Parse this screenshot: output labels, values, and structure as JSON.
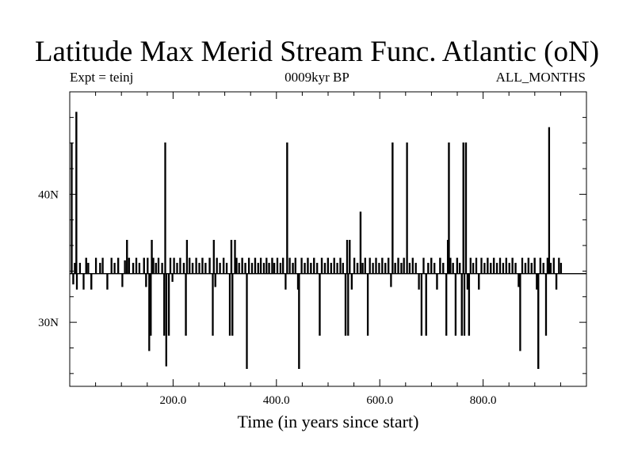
{
  "chart_data": {
    "type": "line",
    "title": "Latitude Max Merid Stream Func. Atlantic (oN)",
    "subtitle_left": "Expt = teinj",
    "subtitle_center": "0009kyr BP",
    "subtitle_right": "ALL_MONTHS",
    "xlabel": "Time (in years since start)",
    "ylabel": "",
    "xlim": [
      0,
      1000
    ],
    "ylim": [
      25.0,
      48.0
    ],
    "x_ticks": [
      200,
      400,
      600,
      800
    ],
    "x_tick_labels": [
      "200.0",
      "400.0",
      "600.0",
      "800.0"
    ],
    "y_ticks": [
      30,
      40
    ],
    "y_tick_labels": [
      "30N",
      "40N"
    ],
    "baseline": 33.8,
    "series": [
      {
        "events": [
          [
            3,
            44.0
          ],
          [
            6,
            33.0
          ],
          [
            9,
            34.6
          ],
          [
            12,
            46.4
          ],
          [
            13,
            32.6
          ],
          [
            19,
            34.6
          ],
          [
            26,
            32.6
          ],
          [
            31,
            35.0
          ],
          [
            35,
            34.6
          ],
          [
            41,
            32.6
          ],
          [
            50,
            35.0
          ],
          [
            58,
            34.6
          ],
          [
            63,
            35.0
          ],
          [
            72,
            32.6
          ],
          [
            80,
            35.0
          ],
          [
            86,
            34.6
          ],
          [
            93,
            35.0
          ],
          [
            101,
            32.8
          ],
          [
            106,
            34.8
          ],
          [
            110,
            36.4
          ],
          [
            114,
            35.0
          ],
          [
            122,
            34.6
          ],
          [
            128,
            35.0
          ],
          [
            134,
            34.6
          ],
          [
            143,
            35.0
          ],
          [
            147,
            32.8
          ],
          [
            150,
            35.0
          ],
          [
            153,
            27.8
          ],
          [
            156,
            29.0
          ],
          [
            158,
            36.4
          ],
          [
            161,
            35.0
          ],
          [
            166,
            34.6
          ],
          [
            171,
            35.0
          ],
          [
            178,
            34.6
          ],
          [
            182,
            29.0
          ],
          [
            184,
            44.0
          ],
          [
            186,
            26.6
          ],
          [
            191,
            29.0
          ],
          [
            194,
            35.0
          ],
          [
            198,
            33.2
          ],
          [
            201,
            35.0
          ],
          [
            207,
            34.6
          ],
          [
            213,
            35.0
          ],
          [
            220,
            34.6
          ],
          [
            224,
            29.0
          ],
          [
            226,
            36.4
          ],
          [
            231,
            35.0
          ],
          [
            237,
            34.6
          ],
          [
            244,
            35.0
          ],
          [
            250,
            34.6
          ],
          [
            256,
            35.0
          ],
          [
            262,
            34.6
          ],
          [
            270,
            35.0
          ],
          [
            276,
            29.0
          ],
          [
            278,
            36.4
          ],
          [
            281,
            32.8
          ],
          [
            284,
            35.0
          ],
          [
            290,
            34.6
          ],
          [
            297,
            35.0
          ],
          [
            303,
            34.6
          ],
          [
            309,
            29.0
          ],
          [
            312,
            36.4
          ],
          [
            314,
            29.0
          ],
          [
            319,
            36.4
          ],
          [
            322,
            35.0
          ],
          [
            327,
            34.6
          ],
          [
            333,
            35.0
          ],
          [
            339,
            34.6
          ],
          [
            342,
            26.4
          ],
          [
            346,
            35.0
          ],
          [
            352,
            34.6
          ],
          [
            358,
            35.0
          ],
          [
            364,
            34.6
          ],
          [
            369,
            35.0
          ],
          [
            375,
            34.6
          ],
          [
            380,
            35.0
          ],
          [
            385,
            34.6
          ],
          [
            391,
            35.0
          ],
          [
            395,
            34.6
          ],
          [
            401,
            35.0
          ],
          [
            407,
            34.6
          ],
          [
            412,
            35.0
          ],
          [
            417,
            32.6
          ],
          [
            420,
            44.0
          ],
          [
            425,
            35.0
          ],
          [
            431,
            34.6
          ],
          [
            436,
            35.0
          ],
          [
            441,
            32.6
          ],
          [
            443,
            26.4
          ],
          [
            448,
            35.0
          ],
          [
            454,
            34.6
          ],
          [
            460,
            35.0
          ],
          [
            466,
            34.6
          ],
          [
            472,
            35.0
          ],
          [
            478,
            34.6
          ],
          [
            483,
            29.0
          ],
          [
            487,
            35.0
          ],
          [
            493,
            34.6
          ],
          [
            499,
            35.0
          ],
          [
            505,
            34.6
          ],
          [
            511,
            35.0
          ],
          [
            517,
            34.6
          ],
          [
            523,
            35.0
          ],
          [
            528,
            34.6
          ],
          [
            533,
            29.0
          ],
          [
            536,
            36.4
          ],
          [
            538,
            29.0
          ],
          [
            541,
            36.4
          ],
          [
            545,
            32.6
          ],
          [
            550,
            35.0
          ],
          [
            556,
            34.6
          ],
          [
            562,
            38.6
          ],
          [
            566,
            34.6
          ],
          [
            571,
            35.0
          ],
          [
            576,
            29.0
          ],
          [
            580,
            35.0
          ],
          [
            586,
            34.6
          ],
          [
            592,
            35.0
          ],
          [
            598,
            34.6
          ],
          [
            604,
            35.0
          ],
          [
            610,
            34.6
          ],
          [
            616,
            35.0
          ],
          [
            621,
            32.8
          ],
          [
            624,
            44.0
          ],
          [
            629,
            34.6
          ],
          [
            635,
            35.0
          ],
          [
            641,
            34.6
          ],
          [
            646,
            35.0
          ],
          [
            652,
            44.0
          ],
          [
            657,
            34.6
          ],
          [
            663,
            35.0
          ],
          [
            669,
            34.6
          ],
          [
            675,
            32.6
          ],
          [
            680,
            29.0
          ],
          [
            684,
            35.0
          ],
          [
            689,
            29.0
          ],
          [
            693,
            34.6
          ],
          [
            699,
            35.0
          ],
          [
            705,
            34.6
          ],
          [
            710,
            32.6
          ],
          [
            716,
            35.0
          ],
          [
            722,
            34.6
          ],
          [
            728,
            29.0
          ],
          [
            731,
            36.4
          ],
          [
            733,
            44.0
          ],
          [
            736,
            35.0
          ],
          [
            741,
            34.6
          ],
          [
            746,
            29.0
          ],
          [
            749,
            35.0
          ],
          [
            754,
            34.6
          ],
          [
            758,
            29.0
          ],
          [
            761,
            44.0
          ],
          [
            763,
            29.0
          ],
          [
            766,
            44.0
          ],
          [
            769,
            32.6
          ],
          [
            772,
            29.0
          ],
          [
            775,
            35.0
          ],
          [
            780,
            34.6
          ],
          [
            786,
            35.0
          ],
          [
            791,
            32.6
          ],
          [
            796,
            35.0
          ],
          [
            802,
            34.6
          ],
          [
            808,
            35.0
          ],
          [
            814,
            34.6
          ],
          [
            820,
            35.0
          ],
          [
            826,
            34.6
          ],
          [
            832,
            35.0
          ],
          [
            838,
            34.6
          ],
          [
            844,
            35.0
          ],
          [
            850,
            34.6
          ],
          [
            856,
            35.0
          ],
          [
            862,
            34.6
          ],
          [
            868,
            32.8
          ],
          [
            871,
            27.8
          ],
          [
            875,
            35.0
          ],
          [
            881,
            34.6
          ],
          [
            887,
            35.0
          ],
          [
            893,
            34.6
          ],
          [
            899,
            35.0
          ],
          [
            903,
            32.6
          ],
          [
            906,
            26.4
          ],
          [
            910,
            35.0
          ],
          [
            916,
            34.6
          ],
          [
            921,
            29.0
          ],
          [
            924,
            35.0
          ],
          [
            927,
            45.2
          ],
          [
            930,
            34.6
          ],
          [
            936,
            35.0
          ],
          [
            941,
            32.6
          ],
          [
            946,
            35.0
          ],
          [
            950,
            34.6
          ]
        ]
      }
    ]
  }
}
